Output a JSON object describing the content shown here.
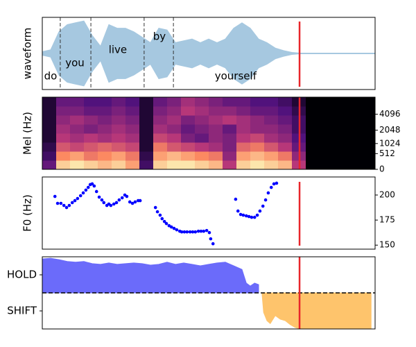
{
  "chart_data": [
    {
      "type": "waveform",
      "ylabel": "waveform",
      "xlim": [
        0,
        100
      ],
      "ylim": [
        -1,
        1
      ],
      "color": "#a6c8e0",
      "x": [
        0,
        2.5,
        5,
        7.5,
        10,
        12.5,
        15,
        17.5,
        20,
        22.5,
        25,
        27.5,
        30,
        32.5,
        35,
        37.5,
        40,
        42.5,
        45,
        47.5,
        50,
        52.5,
        55,
        57.5,
        60,
        62.5,
        65,
        67.5,
        70,
        72.5,
        75,
        77.5,
        80,
        82.5,
        85,
        87.5,
        90,
        92.5,
        95,
        97.5,
        100
      ],
      "values": [
        0.05,
        0.1,
        0.6,
        0.8,
        0.85,
        0.9,
        0.5,
        0.2,
        0.8,
        0.7,
        0.7,
        0.6,
        0.45,
        0.3,
        0.7,
        0.65,
        0.3,
        0.35,
        0.4,
        0.3,
        0.4,
        0.3,
        0.4,
        0.7,
        0.85,
        0.7,
        0.4,
        0.3,
        0.15,
        0.08,
        0.03,
        0.01,
        0.01,
        0.01,
        0.01,
        0.01,
        0.01,
        0.01,
        0.01,
        0.01,
        0.01
      ],
      "boundaries": [
        5.4,
        14.6,
        30.6,
        39.4
      ],
      "annotations": [
        {
          "text": "do",
          "x": 2.5,
          "y": -0.63
        },
        {
          "text": "you",
          "x": 9.8,
          "y": -0.27
        },
        {
          "text": "live",
          "x": 22.7,
          "y": 0.1
        },
        {
          "text": "by",
          "x": 35.2,
          "y": 0.46
        },
        {
          "text": "yourself",
          "x": 58.1,
          "y": -0.63
        }
      ],
      "marker_x": 77.3,
      "marker_color": "#e8262b"
    },
    {
      "type": "heatmap",
      "ylabel": "Mel (Hz)",
      "yscale": "mel",
      "xlim": [
        0,
        100
      ],
      "ylim": [
        0,
        8000
      ],
      "yticks": [
        0,
        512,
        1024,
        2048,
        4096
      ],
      "colormap": "magma",
      "z": [
        [
          0.3,
          0.9,
          0.95,
          0.9,
          0.85,
          0.9,
          0.8,
          0.2,
          0.9,
          0.95,
          0.95,
          0.9,
          0.85,
          0.5,
          0.9,
          0.95,
          0.9,
          0.85,
          0.5,
          0,
          0,
          0,
          0,
          0
        ],
        [
          0.2,
          0.75,
          0.8,
          0.7,
          0.75,
          0.8,
          0.7,
          0.15,
          0.8,
          0.85,
          0.8,
          0.75,
          0.7,
          0.4,
          0.8,
          0.85,
          0.8,
          0.7,
          0.4,
          0,
          0,
          0,
          0,
          0
        ],
        [
          0.15,
          0.6,
          0.55,
          0.6,
          0.65,
          0.6,
          0.55,
          0.1,
          0.7,
          0.6,
          0.55,
          0.5,
          0.45,
          0.35,
          0.65,
          0.7,
          0.6,
          0.5,
          0.3,
          0,
          0,
          0,
          0,
          0
        ],
        [
          0.1,
          0.5,
          0.45,
          0.5,
          0.45,
          0.5,
          0.45,
          0.1,
          0.55,
          0.5,
          0.35,
          0.3,
          0.4,
          0.35,
          0.5,
          0.55,
          0.45,
          0.4,
          0.25,
          0,
          0,
          0,
          0,
          0
        ],
        [
          0.1,
          0.45,
          0.4,
          0.35,
          0.4,
          0.45,
          0.4,
          0.1,
          0.45,
          0.4,
          0.3,
          0.35,
          0.4,
          0.3,
          0.45,
          0.4,
          0.4,
          0.35,
          0.2,
          0,
          0,
          0,
          0,
          0
        ],
        [
          0.1,
          0.4,
          0.45,
          0.4,
          0.35,
          0.4,
          0.35,
          0.1,
          0.4,
          0.45,
          0.35,
          0.4,
          0.45,
          0.5,
          0.45,
          0.4,
          0.35,
          0.3,
          0.2,
          0,
          0,
          0,
          0,
          0
        ],
        [
          0.1,
          0.35,
          0.35,
          0.3,
          0.3,
          0.35,
          0.3,
          0.1,
          0.35,
          0.4,
          0.5,
          0.45,
          0.4,
          0.4,
          0.35,
          0.3,
          0.3,
          0.25,
          0.15,
          0,
          0,
          0,
          0,
          0
        ],
        [
          0.1,
          0.3,
          0.3,
          0.25,
          0.25,
          0.3,
          0.25,
          0.1,
          0.3,
          0.35,
          0.45,
          0.4,
          0.35,
          0.3,
          0.3,
          0.25,
          0.25,
          0.2,
          0.1,
          0,
          0,
          0,
          0,
          0
        ]
      ],
      "marker_x": 77.3,
      "marker_color": "#e8262b"
    },
    {
      "type": "scatter",
      "ylabel": "F0 (Hz)",
      "xlim": [
        0,
        100
      ],
      "ylim": [
        146,
        218
      ],
      "yticks": [
        150,
        175,
        200
      ],
      "color": "#0000ff",
      "x": [
        3.8,
        4.6,
        5.6,
        6.5,
        7.3,
        8.1,
        9.0,
        9.8,
        10.6,
        11.5,
        12.3,
        13.1,
        13.8,
        14.4,
        15.0,
        15.6,
        16.3,
        17.1,
        17.9,
        18.5,
        19.4,
        20.0,
        20.6,
        21.5,
        22.3,
        23.1,
        24.0,
        24.8,
        25.4,
        26.3,
        27.1,
        27.9,
        28.8,
        29.4,
        34.0,
        34.6,
        35.4,
        36.0,
        36.7,
        37.3,
        38.1,
        38.8,
        39.6,
        40.4,
        41.3,
        41.9,
        42.7,
        43.5,
        44.4,
        45.2,
        46.0,
        46.9,
        47.7,
        48.5,
        49.4,
        50.2,
        50.6,
        51.3,
        58.1,
        58.8,
        59.6,
        60.4,
        61.3,
        62.1,
        62.9,
        63.8,
        64.6,
        65.4,
        66.3,
        67.1,
        67.9,
        68.8,
        69.6,
        70.4
      ],
      "values": [
        198.6,
        191.7,
        191.7,
        189.6,
        187.5,
        189.6,
        192.4,
        194.4,
        196.5,
        199.3,
        202.1,
        204.9,
        207.6,
        210.4,
        211.1,
        209.0,
        203.5,
        197.9,
        195.1,
        192.4,
        189.6,
        191.0,
        189.6,
        191.0,
        192.4,
        195.1,
        197.2,
        200.0,
        198.6,
        193.1,
        191.7,
        193.1,
        194.4,
        194.4,
        187.5,
        183.3,
        179.9,
        176.4,
        173.6,
        171.5,
        169.4,
        168.1,
        166.7,
        165.3,
        163.9,
        163.2,
        163.2,
        163.2,
        163.2,
        163.2,
        163.2,
        163.9,
        163.9,
        163.9,
        164.6,
        162.5,
        156.3,
        151.4,
        195.8,
        184.0,
        180.6,
        179.9,
        179.2,
        178.5,
        177.8,
        177.8,
        179.9,
        184.0,
        188.9,
        195.1,
        202.1,
        207.6,
        211.1,
        211.8
      ],
      "marker_x": 77.3,
      "marker_color": "#e8262b"
    },
    {
      "type": "area",
      "xlim": [
        0,
        100
      ],
      "ylim": [
        -1,
        1
      ],
      "yticks": [
        {
          "value": 0.5,
          "label": "HOLD"
        },
        {
          "value": -0.5,
          "label": "SHIFT"
        }
      ],
      "hline": 0,
      "series": [
        {
          "color": "#6b6bfa",
          "x": [
            0,
            2.5,
            5,
            7.5,
            10,
            12.5,
            15,
            17.5,
            20,
            22.5,
            25,
            27.5,
            30,
            32.5,
            35,
            37.5,
            40,
            42.5,
            45,
            47.5,
            50,
            52.5,
            55,
            57.5,
            60,
            61.3,
            62.5,
            63.8,
            65
          ],
          "values": [
            0.94,
            0.96,
            0.92,
            0.87,
            0.85,
            0.87,
            0.81,
            0.79,
            0.83,
            0.79,
            0.81,
            0.83,
            0.81,
            0.77,
            0.79,
            0.85,
            0.79,
            0.83,
            0.79,
            0.75,
            0.79,
            0.83,
            0.85,
            0.75,
            0.65,
            0.27,
            0.19,
            0.27,
            0.23
          ]
        },
        {
          "color": "#fec46c",
          "x": [
            66,
            66.5,
            67.5,
            68.5,
            70,
            71.5,
            73,
            74.5,
            76,
            77.5,
            80,
            90,
            98.8
          ],
          "values": [
            0,
            -0.54,
            -0.77,
            -0.85,
            -0.63,
            -0.73,
            -0.77,
            -0.88,
            -0.96,
            -1,
            -1,
            -1,
            -1
          ]
        }
      ],
      "marker_x": 77.3,
      "marker_color": "#e8262b"
    }
  ]
}
